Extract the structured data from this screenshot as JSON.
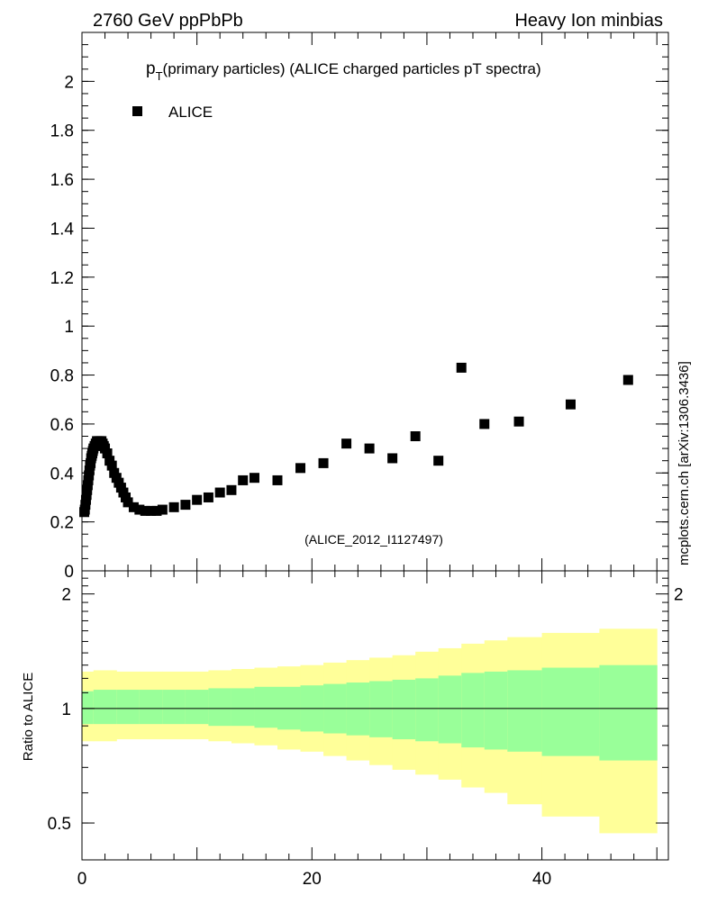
{
  "header": {
    "left": "2760 GeV ppPbPb",
    "right": "Heavy Ion minbias"
  },
  "side_label": "mcplots.cern.ch [arXiv:1306.3436]",
  "colors": {
    "marker": "#000000",
    "band_outer": "#ffff99",
    "band_inner": "#99ff99",
    "axis": "#000000",
    "ref_label": "#999999"
  },
  "chart_data": [
    {
      "type": "scatter",
      "title_main": "p",
      "title_sub": "T",
      "title_rest": "(primary particles) (ALICE charged particles pT spectra)",
      "ref_label": "(ALICE_2012_I1127497)",
      "ylim": [
        0,
        2.2
      ],
      "xlim": [
        0,
        51
      ],
      "yticks": [
        0,
        0.2,
        0.4,
        0.6,
        0.8,
        1,
        1.2,
        1.4,
        1.6,
        1.8,
        2
      ],
      "ytick_labels": [
        "0",
        "0.2",
        "0.4",
        "0.6",
        "0.8",
        "1",
        "1.2",
        "1.4",
        "1.6",
        "1.8",
        "2"
      ],
      "series": [
        {
          "name": "ALICE",
          "marker": "square",
          "x": [
            0.2,
            0.25,
            0.3,
            0.35,
            0.4,
            0.45,
            0.5,
            0.55,
            0.6,
            0.65,
            0.7,
            0.75,
            0.8,
            0.85,
            0.9,
            0.95,
            1.0,
            1.1,
            1.2,
            1.3,
            1.4,
            1.5,
            1.6,
            1.7,
            1.8,
            1.9,
            2.0,
            2.2,
            2.4,
            2.6,
            2.8,
            3.0,
            3.2,
            3.4,
            3.6,
            3.8,
            4.0,
            4.5,
            5.0,
            5.5,
            6.0,
            6.5,
            7.0,
            8.0,
            9.0,
            10.0,
            11.0,
            12.0,
            13.0,
            14.0,
            15.0,
            17.0,
            19.0,
            21.0,
            23.0,
            25.0,
            27.0,
            29.0,
            31.0,
            33.0,
            35.0,
            38.0,
            42.5,
            47.5
          ],
          "y": [
            0.24,
            0.25,
            0.27,
            0.29,
            0.31,
            0.33,
            0.35,
            0.37,
            0.39,
            0.41,
            0.43,
            0.44,
            0.46,
            0.47,
            0.48,
            0.49,
            0.5,
            0.51,
            0.52,
            0.53,
            0.53,
            0.53,
            0.53,
            0.53,
            0.52,
            0.51,
            0.5,
            0.48,
            0.45,
            0.43,
            0.4,
            0.38,
            0.36,
            0.34,
            0.32,
            0.3,
            0.28,
            0.26,
            0.25,
            0.245,
            0.245,
            0.245,
            0.25,
            0.26,
            0.27,
            0.29,
            0.3,
            0.32,
            0.33,
            0.37,
            0.38,
            0.37,
            0.42,
            0.44,
            0.52,
            0.5,
            0.46,
            0.55,
            0.45,
            0.83,
            0.6,
            0.61,
            0.68,
            0.78
          ]
        }
      ]
    },
    {
      "type": "area",
      "ylabel": "Ratio to ALICE",
      "ylim": [
        0.4,
        2.3
      ],
      "yscale": "log",
      "xlim": [
        0,
        51
      ],
      "xticks": [
        0,
        20,
        40
      ],
      "xtick_labels": [
        "0",
        "20",
        "40"
      ],
      "yticks": [
        0.5,
        1,
        2
      ],
      "ytick_labels": [
        "0.5",
        "1",
        "2"
      ],
      "right_ytick_labels": [
        "2"
      ],
      "reference_line": 1,
      "bands": {
        "bin_edges": [
          0,
          1,
          3,
          5,
          7,
          9,
          11,
          13,
          15,
          17,
          19,
          21,
          23,
          25,
          27,
          29,
          31,
          33,
          35,
          37,
          40,
          45,
          50
        ],
        "outer_upper": [
          1.25,
          1.26,
          1.25,
          1.25,
          1.25,
          1.25,
          1.26,
          1.27,
          1.28,
          1.29,
          1.3,
          1.32,
          1.34,
          1.36,
          1.38,
          1.41,
          1.44,
          1.48,
          1.51,
          1.54,
          1.58,
          1.62
        ],
        "outer_lower": [
          0.82,
          0.82,
          0.83,
          0.83,
          0.83,
          0.83,
          0.82,
          0.81,
          0.8,
          0.78,
          0.77,
          0.75,
          0.73,
          0.71,
          0.69,
          0.67,
          0.65,
          0.62,
          0.6,
          0.56,
          0.52,
          0.47
        ],
        "inner_upper": [
          1.11,
          1.12,
          1.12,
          1.12,
          1.12,
          1.12,
          1.13,
          1.13,
          1.14,
          1.14,
          1.15,
          1.16,
          1.17,
          1.18,
          1.19,
          1.2,
          1.22,
          1.24,
          1.25,
          1.26,
          1.28,
          1.3
        ],
        "inner_lower": [
          0.91,
          0.91,
          0.91,
          0.91,
          0.91,
          0.91,
          0.9,
          0.9,
          0.89,
          0.88,
          0.87,
          0.86,
          0.85,
          0.84,
          0.83,
          0.82,
          0.81,
          0.79,
          0.78,
          0.77,
          0.75,
          0.73
        ]
      }
    }
  ]
}
